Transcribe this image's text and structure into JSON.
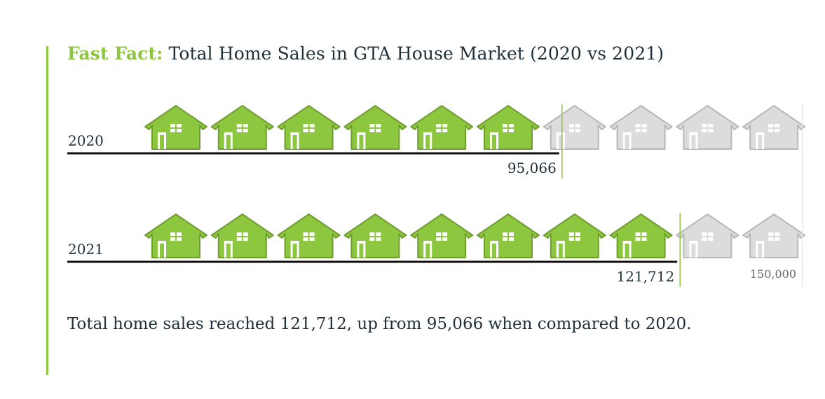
{
  "title": {
    "prefix": "Fast Fact:",
    "text": "Total Home Sales in GTA House Market (2020 vs 2021)"
  },
  "colors": {
    "accent": "#8dc63f",
    "house_filled": "#8dc63f",
    "house_empty": "#dcdcdc",
    "text": "#1e2f3a"
  },
  "chart_data": {
    "type": "bar",
    "categories": [
      "2020",
      "2021"
    ],
    "values": [
      95066,
      121712
    ],
    "value_labels": [
      "95,066",
      "121,712"
    ],
    "max_value": 150000,
    "max_label": "150,000",
    "icons_per_row": 10,
    "units_per_icon": 15000,
    "icon": "house-icon"
  },
  "caption": "Total home sales reached 121,712, up from 95,066 when compared to 2020."
}
